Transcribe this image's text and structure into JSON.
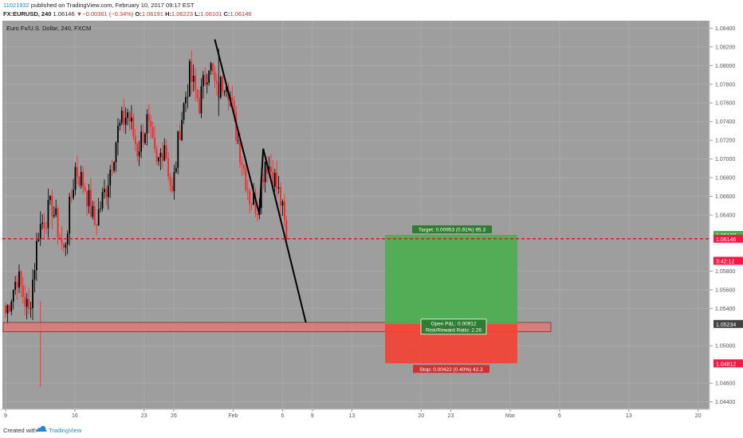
{
  "header": {
    "user": "11021932",
    "published": "published on TradingView.com, February 10, 2017 09:17 EST",
    "symbol": "FX:EURUSD, 240",
    "last": "1.06146",
    "change": "−0.00361 (−0.34%)",
    "o_label": "O:",
    "o": "1.06191",
    "h_label": "H:",
    "h": "1.06223",
    "l_label": "L:",
    "l": "1.06101",
    "c_label": "C:",
    "c": "1.06146"
  },
  "footer": {
    "created_with": "Created with",
    "brand": "TradingView"
  },
  "colors": {
    "up_candle": "#000000",
    "down_candle": "#ff2222",
    "background": "#9e9e9e",
    "grid": "#aaaaaa",
    "target_zone": "#4caf50",
    "stop_zone": "#f44336",
    "support_zone": "#e57373",
    "price_line": "#ff0000"
  },
  "chart_data": {
    "type": "candlestick",
    "title": "Euro Fx/U.S. Dollar, 240, FXCM",
    "timeframe": "240",
    "y_range": [
      1.0432,
      1.0848
    ],
    "y_ticks": [
      "1.08400",
      "1.08200",
      "1.08000",
      "1.07800",
      "1.07600",
      "1.07400",
      "1.07200",
      "1.07000",
      "1.06800",
      "1.06600",
      "1.06400",
      "1.05800",
      "1.05600",
      "1.05400",
      "1.05000",
      "1.04600",
      "1.04400"
    ],
    "x_ticks": [
      {
        "label": "9",
        "date": "2017-01-09"
      },
      {
        "label": "16",
        "date": "2017-01-16"
      },
      {
        "label": "23",
        "date": "2017-01-23"
      },
      {
        "label": "26",
        "date": "2017-01-26"
      },
      {
        "label": "Feb",
        "date": "2017-02-01"
      },
      {
        "label": "6",
        "date": "2017-02-06"
      },
      {
        "label": "9",
        "date": "2017-02-09"
      },
      {
        "label": "13",
        "date": "2017-02-13"
      },
      {
        "label": "20",
        "date": "2017-02-20"
      },
      {
        "label": "23",
        "date": "2017-02-23"
      },
      {
        "label": "Mar",
        "date": "2017-03-01"
      },
      {
        "label": "6",
        "date": "2017-03-06"
      },
      {
        "label": "13",
        "date": "2017-03-13"
      },
      {
        "label": "20",
        "date": "2017-03-20"
      }
    ],
    "price_labels": [
      {
        "value": 1.06187,
        "text": "1.06187",
        "color": "#4caf50"
      },
      {
        "value": 1.06146,
        "text": "1.06146",
        "color": "#ff1744"
      },
      {
        "value": 1.0591,
        "text": "3:42:12",
        "color": "#ff1744"
      },
      {
        "value": 1.05234,
        "text": "1.05234",
        "color": "#424242"
      },
      {
        "value": 1.04812,
        "text": "1.04812",
        "color": "#ff1744"
      }
    ],
    "current_price": 1.06146,
    "anchors": [
      {
        "bar": 0,
        "price": 1.0535
      },
      {
        "bar": 6,
        "price": 1.0575
      },
      {
        "bar": 12,
        "price": 1.0535
      },
      {
        "bar": 17,
        "price": 1.0625
      },
      {
        "bar": 24,
        "price": 1.065
      },
      {
        "bar": 30,
        "price": 1.06
      },
      {
        "bar": 36,
        "price": 1.069
      },
      {
        "bar": 41,
        "price": 1.067
      },
      {
        "bar": 46,
        "price": 1.063
      },
      {
        "bar": 52,
        "price": 1.067
      },
      {
        "bar": 58,
        "price": 1.073
      },
      {
        "bar": 63,
        "price": 1.075
      },
      {
        "bar": 68,
        "price": 1.071
      },
      {
        "bar": 73,
        "price": 1.074
      },
      {
        "bar": 78,
        "price": 1.069
      },
      {
        "bar": 82,
        "price": 1.072
      },
      {
        "bar": 86,
        "price": 1.066
      },
      {
        "bar": 90,
        "price": 1.0735
      },
      {
        "bar": 95,
        "price": 1.079
      },
      {
        "bar": 100,
        "price": 1.076
      },
      {
        "bar": 105,
        "price": 1.0805
      },
      {
        "bar": 109,
        "price": 1.077
      },
      {
        "bar": 114,
        "price": 1.079
      },
      {
        "bar": 118,
        "price": 1.074
      },
      {
        "bar": 122,
        "price": 1.07
      },
      {
        "bar": 126,
        "price": 1.066
      },
      {
        "bar": 130,
        "price": 1.065
      },
      {
        "bar": 134,
        "price": 1.07
      },
      {
        "bar": 138,
        "price": 1.0685
      },
      {
        "bar": 142,
        "price": 1.0655
      },
      {
        "bar": 145,
        "price": 1.06146
      }
    ],
    "trendlines": [
      {
        "from": {
          "bar": 108,
          "price": 1.0828
        },
        "to": {
          "bar": 131,
          "price": 1.0641
        }
      },
      {
        "from": {
          "bar": 133,
          "price": 1.0711
        },
        "to": {
          "bar": 155,
          "price": 1.0525
        }
      },
      {
        "from": {
          "bar": 131,
          "price": 1.0641
        },
        "to": {
          "bar": 133,
          "price": 1.0711
        }
      }
    ],
    "long_position": {
      "entry": 1.05234,
      "target": 1.06187,
      "stop": 1.04812,
      "target_text": "Target: 0.00953 (0.91%) 95.3",
      "stop_text": "Stop: 0.00422 (0.40%) 42.2",
      "pnl_text": "Open P&L: 0.00912",
      "rr_text": "Risk/Reward Ratio: 2.26"
    },
    "support_zone": {
      "top": 1.0525,
      "bottom": 1.0515
    }
  }
}
